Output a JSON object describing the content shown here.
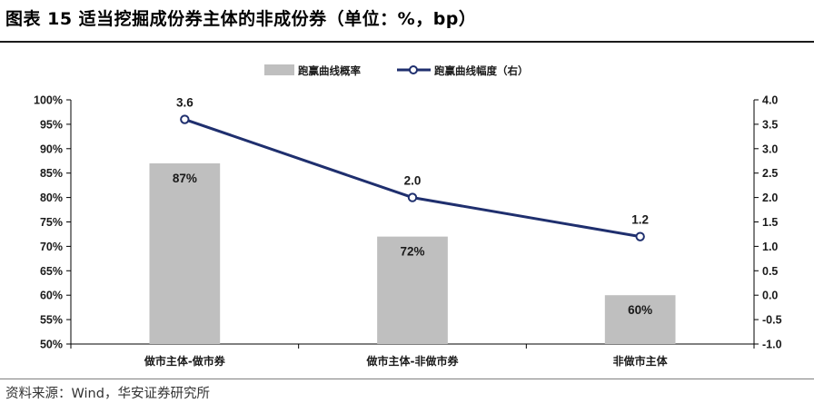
{
  "header": {
    "title": "图表 15 适当挖掘成份券主体的非成份券（单位：%，bp）"
  },
  "footer": {
    "source": "资料来源：Wind，华安证券研究所"
  },
  "chart_data": {
    "type": "bar+line",
    "categories": [
      "做市主体-做市券",
      "做市主体-非做市券",
      "非做市主体"
    ],
    "series": [
      {
        "name": "跑赢曲线概率",
        "type": "bar",
        "axis": "left",
        "values": [
          87,
          72,
          60
        ],
        "value_labels": [
          "87%",
          "72%",
          "60%"
        ],
        "color": "#bfbfbf"
      },
      {
        "name": "跑赢曲线幅度（右）",
        "type": "line",
        "axis": "right",
        "values": [
          3.6,
          2.0,
          1.2
        ],
        "value_labels": [
          "3.6",
          "2.0",
          "1.2"
        ],
        "color": "#1f2f6e"
      }
    ],
    "left_axis": {
      "min": 50,
      "max": 100,
      "step": 5,
      "tick_labels": [
        "50%",
        "55%",
        "60%",
        "65%",
        "70%",
        "75%",
        "80%",
        "85%",
        "90%",
        "95%",
        "100%"
      ]
    },
    "right_axis": {
      "min": -1.0,
      "max": 4.0,
      "step": 0.5,
      "tick_labels": [
        "-1.0",
        "-0.5",
        "0.0",
        "0.5",
        "1.0",
        "1.5",
        "2.0",
        "2.5",
        "3.0",
        "3.5",
        "4.0"
      ]
    },
    "legend_position": "top-center",
    "grid": false
  }
}
